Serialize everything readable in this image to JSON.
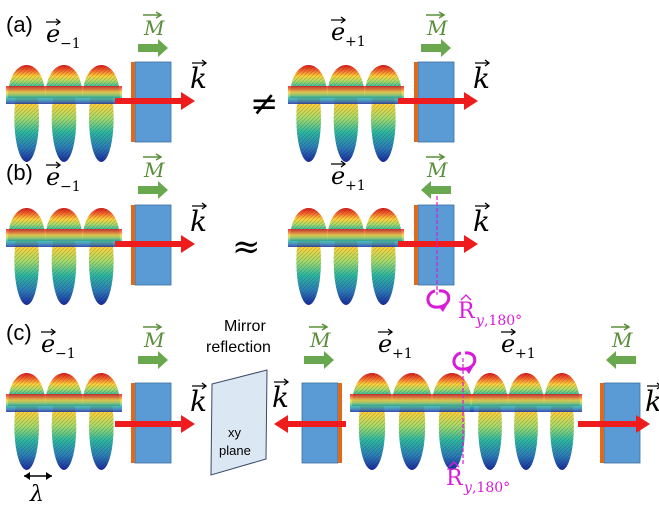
{
  "panels": [
    {
      "label": "(a)",
      "left": {
        "e_base": "e",
        "e_sub": "−1",
        "m_dir": "right",
        "m_label": "M",
        "k_label": "k",
        "k_dir": "right"
      },
      "relation": "≠",
      "right": {
        "e_base": "e",
        "e_sub": "+1",
        "m_dir": "right",
        "m_label": "M",
        "k_label": "k",
        "k_dir": "right"
      }
    },
    {
      "label": "(b)",
      "left": {
        "e_base": "e",
        "e_sub": "−1",
        "m_dir": "right",
        "m_label": "M",
        "k_label": "k",
        "k_dir": "right"
      },
      "relation": "≈",
      "right": {
        "e_base": "e",
        "e_sub": "+1",
        "m_dir": "left",
        "m_label": "M",
        "k_label": "k",
        "k_dir": "right"
      },
      "rotation": {
        "symbol": "R",
        "sub_axis": "y",
        "sub_angle": ",180°"
      }
    },
    {
      "label": "(c)",
      "mirror_title_line1": "Mirror",
      "mirror_title_line2": "reflection",
      "mirror_plane_line1": "xy",
      "mirror_plane_line2": "plane",
      "wavelength_symbol": "λ",
      "rotation": {
        "symbol": "R",
        "sub_axis": "y",
        "sub_angle": ",180°"
      }
    }
  ],
  "colors": {
    "k_arrow": "#ee1c1c",
    "m_arrow": "#6aa84f",
    "m_label": "#5a8f3a",
    "slab": "#5b9bd5",
    "slab_edge": "#e06a1b",
    "mirror_fill": "#dbe7f3",
    "rotation": "#d81bd8"
  }
}
